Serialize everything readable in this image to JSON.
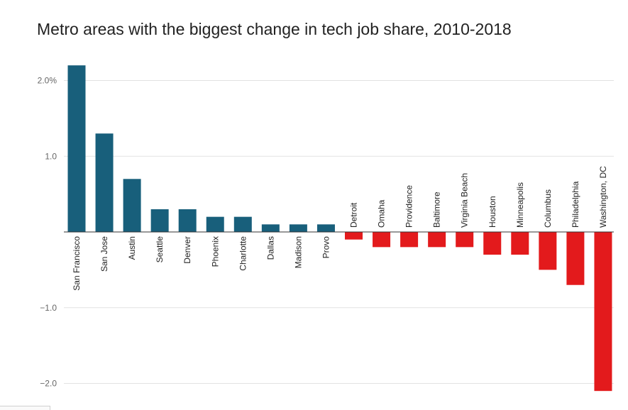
{
  "chart_data": {
    "type": "bar",
    "title": "Metro areas with the biggest change in tech job share, 2010-2018",
    "xlabel": "",
    "ylabel": "",
    "ylim": [
      -2.1,
      2.2
    ],
    "y_ticks": [
      {
        "value": 2.0,
        "label": "2.0%"
      },
      {
        "value": 1.0,
        "label": "1.0"
      },
      {
        "value": -1.0,
        "label": "−1.0"
      },
      {
        "value": -2.0,
        "label": "−2.0"
      }
    ],
    "grid": true,
    "categories": [
      "San Francisco",
      "San Jose",
      "Austin",
      "Seattle",
      "Denver",
      "Phoenix",
      "Charlotte",
      "Dallas",
      "Madison",
      "Provo",
      "Detroit",
      "Omaha",
      "Providence",
      "Baltimore",
      "Virginia Beach",
      "Houston",
      "Minneapolis",
      "Columbus",
      "Philadelphia",
      "Washington, DC"
    ],
    "values": [
      2.2,
      1.3,
      0.7,
      0.3,
      0.3,
      0.2,
      0.2,
      0.1,
      0.1,
      0.1,
      -0.1,
      -0.2,
      -0.2,
      -0.2,
      -0.2,
      -0.3,
      -0.3,
      -0.5,
      -0.7,
      -2.1
    ],
    "colors": {
      "positive": "#185f7b",
      "negative": "#e31a1c"
    }
  }
}
